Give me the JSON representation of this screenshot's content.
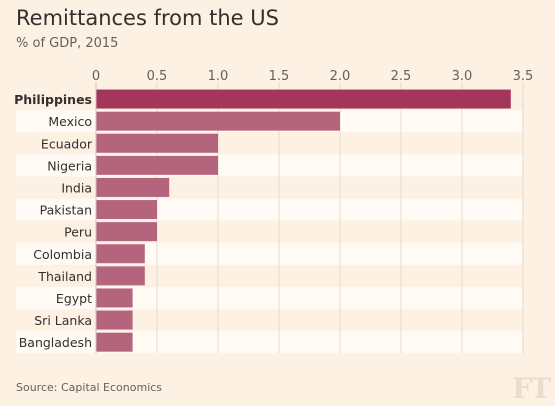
{
  "title": "Remittances from the US",
  "subtitle": "% of GDP, 2015",
  "source": "Source: Capital Economics",
  "logo": "FT",
  "colors": {
    "bar": "#b5647d",
    "bar_highlight": "#a4355b",
    "stripe": "#fffaf3",
    "axis_text": "#66605c",
    "label_text": "#33302e"
  },
  "chart_data": {
    "type": "bar",
    "orientation": "horizontal",
    "title": "Remittances from the US",
    "subtitle": "% of GDP, 2015",
    "xlim": [
      0,
      3.5
    ],
    "ticks": [
      0,
      0.5,
      1.0,
      1.5,
      2.0,
      2.5,
      3.0,
      3.5
    ],
    "tick_labels": [
      "0",
      "0.5",
      "1.0",
      "1.5",
      "2.0",
      "2.5",
      "3.0",
      "3.5"
    ],
    "axis_position": "top",
    "highlight": "Philippines",
    "categories": [
      "Philippines",
      "Mexico",
      "Ecuador",
      "Nigeria",
      "India",
      "Pakistan",
      "Peru",
      "Colombia",
      "Thailand",
      "Egypt",
      "Sri Lanka",
      "Bangladesh"
    ],
    "values": [
      3.4,
      2.0,
      1.0,
      1.0,
      0.6,
      0.5,
      0.5,
      0.4,
      0.4,
      0.3,
      0.3,
      0.3
    ]
  }
}
